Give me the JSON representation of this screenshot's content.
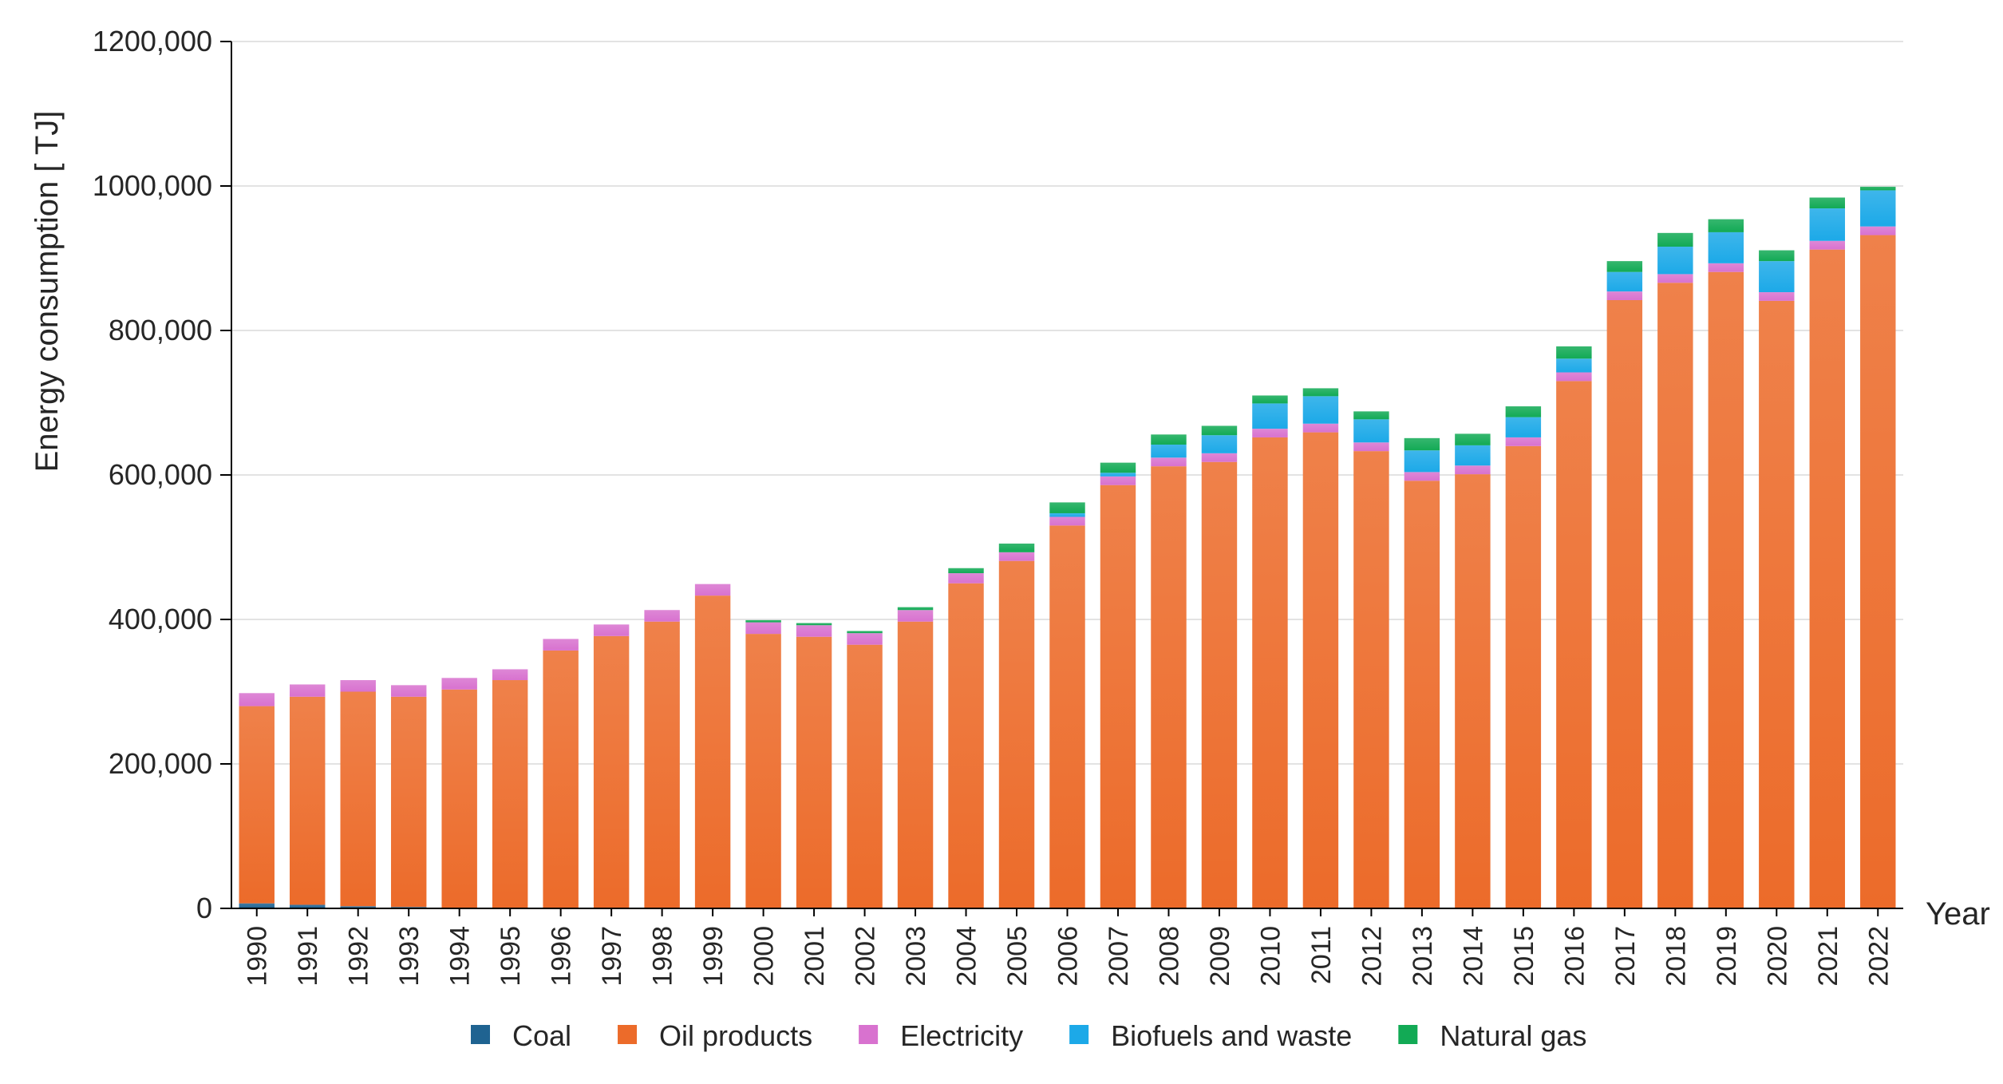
{
  "chart_data": {
    "type": "bar",
    "stacked": true,
    "title": "",
    "ylabel": "Energy consumption [ TJ]",
    "xlabel": "Year",
    "ylim": [
      0,
      1200000
    ],
    "yticks": [
      0,
      200000,
      400000,
      600000,
      800000,
      1000000,
      1200000
    ],
    "ytick_labels": [
      "0",
      "200,000",
      "400,000",
      "600,000",
      "800,000",
      "1000,000",
      "1200,000"
    ],
    "grid": "horizontal",
    "legend_position": "bottom",
    "categories": [
      "1990",
      "1991",
      "1992",
      "1993",
      "1994",
      "1995",
      "1996",
      "1997",
      "1998",
      "1999",
      "2000",
      "2001",
      "2002",
      "2003",
      "2004",
      "2005",
      "2006",
      "2007",
      "2008",
      "2009",
      "2010",
      "2011",
      "2012",
      "2013",
      "2014",
      "2015",
      "2016",
      "2017",
      "2018",
      "2019",
      "2020",
      "2021",
      "2022"
    ],
    "series": [
      {
        "name": "Coal",
        "color": "#1f6391",
        "values": [
          7000,
          5000,
          3000,
          2000,
          0,
          0,
          0,
          0,
          0,
          0,
          0,
          0,
          0,
          0,
          0,
          0,
          0,
          0,
          0,
          0,
          0,
          0,
          0,
          0,
          0,
          0,
          0,
          0,
          0,
          0,
          0,
          0,
          0
        ]
      },
      {
        "name": "Oil products",
        "color": "#ec6b2a",
        "values": [
          273000,
          288000,
          297000,
          291000,
          303000,
          316000,
          357000,
          377000,
          397000,
          433000,
          380000,
          376000,
          365000,
          397000,
          450000,
          481000,
          530000,
          586000,
          612000,
          618000,
          652000,
          659000,
          633000,
          592000,
          601000,
          640000,
          730000,
          842000,
          866000,
          881000,
          841000,
          912000,
          932000
        ]
      },
      {
        "name": "Electricity",
        "color": "#d872cf",
        "values": [
          18000,
          17000,
          16000,
          16000,
          16000,
          15000,
          16000,
          16000,
          16000,
          16000,
          16000,
          16000,
          16000,
          16000,
          14000,
          12000,
          12000,
          12000,
          12000,
          12000,
          12000,
          12000,
          12000,
          12000,
          12000,
          12000,
          12000,
          12000,
          12000,
          12000,
          12000,
          12000,
          12000
        ]
      },
      {
        "name": "Biofuels and waste",
        "color": "#1ca9e8",
        "values": [
          0,
          0,
          0,
          0,
          0,
          0,
          0,
          0,
          0,
          0,
          0,
          0,
          0,
          0,
          0,
          0,
          5000,
          5000,
          18000,
          25000,
          35000,
          38000,
          32000,
          30000,
          28000,
          28000,
          19000,
          27000,
          38000,
          43000,
          43000,
          45000,
          50000
        ]
      },
      {
        "name": "Natural gas",
        "color": "#12aa55",
        "values": [
          0,
          0,
          0,
          0,
          0,
          0,
          0,
          0,
          0,
          0,
          3000,
          3000,
          3000,
          4000,
          7000,
          12000,
          15000,
          14000,
          14000,
          13000,
          11000,
          11000,
          11000,
          17000,
          16000,
          15000,
          17000,
          15000,
          19000,
          18000,
          15000,
          15000,
          5000
        ]
      }
    ]
  }
}
